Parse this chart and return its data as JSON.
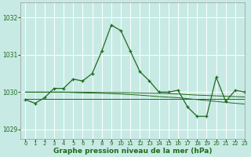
{
  "title": "Graphe pression niveau de la mer (hPa)",
  "background_color": "#c8eae4",
  "grid_color": "#ffffff",
  "line_color": "#1e6b1e",
  "xlim": [
    -0.5,
    23
  ],
  "ylim": [
    1028.75,
    1032.4
  ],
  "yticks": [
    1029,
    1030,
    1031,
    1032
  ],
  "xticks": [
    0,
    1,
    2,
    3,
    4,
    5,
    6,
    7,
    8,
    9,
    10,
    11,
    12,
    13,
    14,
    15,
    16,
    17,
    18,
    19,
    20,
    21,
    22,
    23
  ],
  "line1_x": [
    0,
    1,
    2,
    3,
    4,
    5,
    6,
    7,
    8,
    9,
    10,
    11,
    12,
    13,
    14,
    15,
    16,
    17,
    18,
    19,
    20,
    21,
    22,
    23
  ],
  "line1_y": [
    1029.8,
    1029.7,
    1029.85,
    1030.1,
    1030.1,
    1030.35,
    1030.3,
    1030.5,
    1031.1,
    1031.8,
    1031.65,
    1031.1,
    1030.55,
    1030.3,
    1030.0,
    1030.0,
    1030.05,
    1029.6,
    1029.35,
    1029.35,
    1030.4,
    1029.75,
    1030.05,
    1030.0
  ],
  "line2_x": [
    0,
    2,
    4,
    6,
    8,
    10,
    12,
    14,
    16,
    18,
    20,
    22,
    23
  ],
  "line2_y": [
    1029.82,
    1029.82,
    1029.82,
    1029.82,
    1029.82,
    1029.82,
    1029.82,
    1029.82,
    1029.82,
    1029.82,
    1029.82,
    1029.82,
    1029.82
  ],
  "line3_x": [
    0,
    2,
    4,
    6,
    8,
    10,
    12,
    14,
    16,
    18,
    20,
    22,
    23
  ],
  "line3_y": [
    1030.0,
    1030.0,
    1030.0,
    1029.98,
    1029.97,
    1029.95,
    1029.92,
    1029.88,
    1029.85,
    1029.8,
    1029.75,
    1029.7,
    1029.68
  ],
  "line4_x": [
    0,
    2,
    4,
    6,
    8,
    10,
    12,
    14,
    16,
    18,
    20,
    22,
    23
  ],
  "line4_y": [
    1030.0,
    1030.0,
    1030.0,
    1030.0,
    1029.99,
    1029.99,
    1029.98,
    1029.97,
    1029.95,
    1029.92,
    1029.9,
    1029.88,
    1029.87
  ],
  "title_fontsize": 6.5
}
